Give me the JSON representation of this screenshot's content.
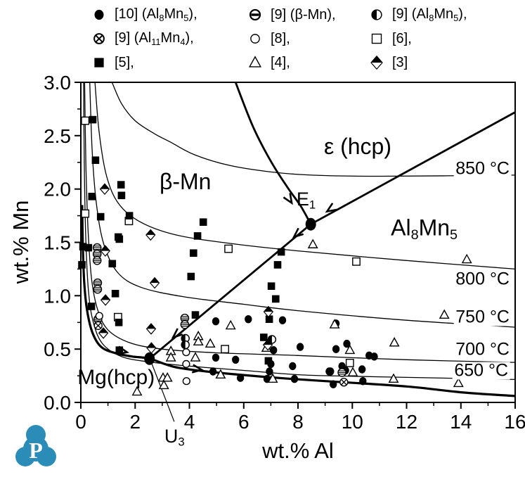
{
  "logo": {
    "letter": "P",
    "color": "#2b8cb7"
  },
  "legend": {
    "items": [
      {
        "name": "ref10-al8mn5",
        "marker": "filled-circle",
        "label_parts": [
          {
            "t": "[10] (Al"
          },
          {
            "t": "8",
            "sub": true
          },
          {
            "t": "Mn"
          },
          {
            "t": "5",
            "sub": true
          },
          {
            "t": "),"
          }
        ]
      },
      {
        "name": "ref9-beta-mn",
        "marker": "dash-circle",
        "label_parts": [
          {
            "t": "[9] (β-Mn),"
          }
        ]
      },
      {
        "name": "ref9-al8mn5",
        "marker": "half-circle",
        "label_parts": [
          {
            "t": "[9] (Al"
          },
          {
            "t": "8",
            "sub": true
          },
          {
            "t": "Mn"
          },
          {
            "t": "5",
            "sub": true
          },
          {
            "t": "),"
          }
        ]
      },
      {
        "name": "ref9-al11mn4",
        "marker": "crossed-circle",
        "label_parts": [
          {
            "t": "[9] (Al"
          },
          {
            "t": "11",
            "sub": true
          },
          {
            "t": "Mn"
          },
          {
            "t": "4",
            "sub": true
          },
          {
            "t": "),"
          }
        ]
      },
      {
        "name": "ref8",
        "marker": "open-circle",
        "label_parts": [
          {
            "t": "[8],"
          }
        ]
      },
      {
        "name": "ref6",
        "marker": "open-square",
        "label_parts": [
          {
            "t": "[6],"
          }
        ]
      },
      {
        "name": "ref5",
        "marker": "filled-square",
        "label_parts": [
          {
            "t": "[5],"
          }
        ]
      },
      {
        "name": "ref4",
        "marker": "open-triangle",
        "label_parts": [
          {
            "t": "[4],"
          }
        ]
      },
      {
        "name": "ref3",
        "marker": "half-diamond",
        "label_parts": [
          {
            "t": "[3]"
          }
        ]
      }
    ]
  },
  "chart_data": {
    "type": "scatter",
    "xlabel": "wt.% Al",
    "ylabel": "wt.% Mn",
    "xlim": [
      0,
      16
    ],
    "ylim": [
      0,
      3.0
    ],
    "x_ticks": [
      0,
      2,
      4,
      6,
      8,
      10,
      12,
      14,
      16
    ],
    "x_minor_ticks": [
      1,
      3,
      5,
      7,
      9,
      11,
      13,
      15
    ],
    "y_ticks": [
      "0.0",
      "0.5",
      "1.0",
      "1.5",
      "2.0",
      "2.5",
      "3.0"
    ],
    "y_minor_ticks": [
      0.25,
      0.75,
      1.25,
      1.75,
      2.25,
      2.75
    ],
    "series": [
      {
        "name": "[10] (Al8Mn5)",
        "marker": "filled-circle",
        "points": [
          [
            4.97,
            0.76
          ],
          [
            6.17,
            0.78
          ],
          [
            7.43,
            0.77
          ],
          [
            9.4,
            0.74
          ],
          [
            7.1,
            0.49
          ],
          [
            8.08,
            0.52
          ],
          [
            9.4,
            0.5
          ],
          [
            9.8,
            0.55
          ],
          [
            10.81,
            0.43
          ],
          [
            10.62,
            0.44
          ],
          [
            4.97,
            0.42
          ],
          [
            5.7,
            0.4
          ],
          [
            4.87,
            0.29
          ],
          [
            5.88,
            0.23
          ],
          [
            7.8,
            0.34
          ],
          [
            7.87,
            0.22
          ],
          [
            6.86,
            0.22
          ],
          [
            7.0,
            0.36
          ],
          [
            6.95,
            0.29
          ],
          [
            9.2,
            0.29
          ],
          [
            9.62,
            0.34
          ],
          [
            9.75,
            0.3
          ],
          [
            10.36,
            0.31
          ],
          [
            10.39,
            0.2
          ],
          [
            9.3,
            0.17
          ],
          [
            9.15,
            0.29
          ]
        ]
      },
      {
        "name": "[9] (beta-Mn)",
        "marker": "dash-circle",
        "points": [
          [
            0.6,
            1.45
          ],
          [
            0.6,
            1.39
          ],
          [
            0.6,
            1.33
          ],
          [
            0.62,
            1.12
          ],
          [
            0.62,
            1.06
          ],
          [
            0.63,
            0.78
          ],
          [
            3.83,
            0.79
          ],
          [
            3.83,
            0.73
          ],
          [
            9.62,
            0.28
          ]
        ]
      },
      {
        "name": "[9] (Al8Mn5)",
        "marker": "half-circle",
        "points": [
          [
            3.85,
            0.6
          ],
          [
            3.85,
            0.54
          ],
          [
            7.04,
            0.59
          ]
        ]
      },
      {
        "name": "[9] (Al11Mn4)",
        "marker": "crossed-circle",
        "points": [
          [
            0.64,
            0.72
          ],
          [
            9.69,
            0.19
          ]
        ]
      },
      {
        "name": "[8]",
        "marker": "open-circle",
        "points": [
          [
            0.68,
            0.81
          ],
          [
            3.88,
            0.47
          ],
          [
            3.88,
            0.36
          ],
          [
            3.89,
            0.2
          ]
        ]
      },
      {
        "name": "[6]",
        "marker": "open-square",
        "points": [
          [
            0.16,
            2.64
          ],
          [
            0.16,
            1.77
          ],
          [
            1.77,
            1.7
          ],
          [
            1.37,
            0.8
          ],
          [
            5.44,
            1.44
          ],
          [
            5.31,
            0.5
          ],
          [
            10.15,
            1.32
          ],
          [
            9.91,
            0.37
          ]
        ]
      },
      {
        "name": "[5]",
        "marker": "filled-square",
        "points": [
          [
            0.44,
            2.65
          ],
          [
            0.54,
            2.27
          ],
          [
            1.48,
            2.04
          ],
          [
            1.5,
            1.94
          ],
          [
            0.41,
            1.93
          ],
          [
            0.73,
            1.74
          ],
          [
            1.79,
            1.75
          ],
          [
            1.38,
            1.55
          ],
          [
            1.42,
            1.53
          ],
          [
            4.51,
            1.69
          ],
          [
            4.3,
            1.56
          ],
          [
            0.28,
            1.45
          ],
          [
            0.08,
            1.46
          ],
          [
            1.16,
            1.3
          ],
          [
            0.04,
            1.29
          ],
          [
            4.15,
            1.4
          ],
          [
            7.38,
            1.41
          ],
          [
            7.25,
            1.29
          ],
          [
            4.06,
            1.18
          ],
          [
            7.02,
            1.09
          ],
          [
            1.27,
            1.02
          ],
          [
            7.18,
            0.97
          ],
          [
            0.39,
            0.9
          ],
          [
            1.4,
            0.75
          ],
          [
            4.22,
            0.82
          ],
          [
            6.94,
            0.78
          ],
          [
            6.74,
            0.61
          ],
          [
            6.91,
            0.39
          ],
          [
            1.42,
            0.49
          ]
        ]
      },
      {
        "name": "[4]",
        "marker": "open-triangle",
        "points": [
          [
            8.55,
            1.48
          ],
          [
            14.22,
            1.34
          ],
          [
            13.39,
            0.82
          ],
          [
            9.35,
            0.73
          ],
          [
            11.55,
            0.56
          ],
          [
            9.91,
            0.49
          ],
          [
            10.02,
            0.28
          ],
          [
            11.52,
            0.22
          ],
          [
            13.91,
            0.18
          ],
          [
            7.07,
            0.22
          ],
          [
            6.84,
            0.51
          ],
          [
            5.52,
            0.72
          ],
          [
            4.33,
            0.62
          ],
          [
            4.33,
            0.57
          ],
          [
            4.77,
            0.55
          ],
          [
            4.22,
            0.42
          ],
          [
            3.32,
            0.48
          ],
          [
            3.32,
            0.42
          ],
          [
            3.03,
            0.23
          ],
          [
            3.19,
            0.23
          ],
          [
            3.06,
            0.16
          ],
          [
            2.07,
            0.1
          ],
          [
            5.15,
            0.26
          ]
        ]
      },
      {
        "name": "[3]",
        "marker": "half-diamond",
        "points": [
          [
            0.88,
            2.0
          ],
          [
            2.57,
            1.57
          ],
          [
            0.9,
            1.42
          ],
          [
            2.72,
            1.12
          ],
          [
            0.91,
            0.96
          ],
          [
            0.83,
            0.65
          ],
          [
            2.59,
            0.69
          ],
          [
            2.6,
            0.51
          ],
          [
            6.91,
            0.85
          ],
          [
            6.89,
            0.54
          ]
        ]
      }
    ],
    "isotherms": [
      {
        "name": "850c",
        "label": "850 °C",
        "label_pos": [
          14.8,
          2.19
        ],
        "points": [
          [
            1.15,
            3.0
          ],
          [
            1.5,
            2.8
          ],
          [
            2.0,
            2.64
          ],
          [
            2.7,
            2.52
          ],
          [
            3.3,
            2.44
          ],
          [
            4.2,
            2.32
          ],
          [
            5.5,
            2.22
          ],
          [
            7.0,
            2.16
          ],
          [
            8.5,
            2.13
          ],
          [
            11.0,
            2.12
          ],
          [
            16.0,
            2.13
          ]
        ]
      },
      {
        "name": "800c",
        "label": "800 °C",
        "label_pos": [
          14.8,
          1.155
        ],
        "points": [
          [
            0.52,
            3.0
          ],
          [
            0.68,
            2.52
          ],
          [
            0.95,
            2.12
          ],
          [
            1.4,
            1.86
          ],
          [
            2.2,
            1.69
          ],
          [
            3.5,
            1.57
          ],
          [
            5.5,
            1.49
          ],
          [
            8.0,
            1.42
          ],
          [
            12.0,
            1.33
          ],
          [
            16.0,
            1.25
          ]
        ]
      },
      {
        "name": "750c",
        "label": "750 °C",
        "label_pos": [
          14.8,
          0.8
        ],
        "points": [
          [
            0.33,
            3.0
          ],
          [
            0.42,
            2.35
          ],
          [
            0.58,
            1.85
          ],
          [
            0.85,
            1.48
          ],
          [
            1.35,
            1.22
          ],
          [
            2.2,
            1.08
          ],
          [
            3.8,
            0.99
          ],
          [
            6.0,
            0.92
          ],
          [
            8.0,
            0.86
          ],
          [
            12.0,
            0.77
          ],
          [
            16.0,
            0.705
          ]
        ]
      },
      {
        "name": "700c",
        "label": "700 °C",
        "label_pos": [
          14.8,
          0.495
        ],
        "points": [
          [
            0.14,
            3.0
          ],
          [
            0.19,
            2.2
          ],
          [
            0.27,
            1.6
          ],
          [
            0.4,
            1.15
          ],
          [
            0.62,
            0.87
          ],
          [
            1.0,
            0.68
          ],
          [
            1.8,
            0.56
          ],
          [
            3.0,
            0.5
          ],
          [
            5.0,
            0.465
          ],
          [
            8.0,
            0.44
          ],
          [
            12.0,
            0.4
          ],
          [
            16.0,
            0.375
          ]
        ]
      },
      {
        "name": "650c",
        "label": "650 °C",
        "label_pos": [
          14.75,
          0.297
        ],
        "points": [
          [
            0.1,
            3.0
          ],
          [
            0.13,
            2.2
          ],
          [
            0.18,
            1.55
          ],
          [
            0.28,
            1.05
          ],
          [
            0.45,
            0.76
          ],
          [
            0.8,
            0.55
          ],
          [
            1.5,
            0.43
          ],
          [
            2.5,
            0.38
          ],
          [
            4.0,
            0.34
          ],
          [
            6.0,
            0.3
          ],
          [
            8.0,
            0.26
          ],
          [
            10.0,
            0.245
          ],
          [
            12.0,
            0.235
          ],
          [
            14.0,
            0.225
          ],
          [
            16.0,
            0.215
          ]
        ]
      }
    ],
    "boundaries": [
      {
        "name": "epsilon-beta-boundary",
        "width": 2.8,
        "points": [
          [
            5.7,
            3.0
          ],
          [
            6.35,
            2.58
          ],
          [
            7.0,
            2.26
          ],
          [
            7.6,
            2.02
          ],
          [
            8.1,
            1.84
          ],
          [
            8.47,
            1.67
          ]
        ]
      },
      {
        "name": "e1-al8mn5-line",
        "width": 2.8,
        "points": [
          [
            8.47,
            1.67
          ],
          [
            16.0,
            2.72
          ]
        ]
      },
      {
        "name": "e1-u3-line",
        "width": 2.8,
        "points": [
          [
            8.47,
            1.67
          ],
          [
            2.53,
            0.41
          ]
        ]
      },
      {
        "name": "mg-hcp-solvus",
        "width": 3.2,
        "points": [
          [
            0.05,
            1.85
          ],
          [
            0.07,
            1.5
          ],
          [
            0.12,
            1.15
          ],
          [
            0.22,
            0.88
          ],
          [
            0.42,
            0.66
          ],
          [
            0.75,
            0.52
          ],
          [
            1.3,
            0.46
          ],
          [
            1.9,
            0.43
          ],
          [
            2.53,
            0.41
          ],
          [
            3.5,
            0.33
          ],
          [
            5.0,
            0.28
          ],
          [
            7.0,
            0.235
          ],
          [
            9.0,
            0.2
          ],
          [
            12.0,
            0.15
          ],
          [
            14.0,
            0.095
          ],
          [
            16.0,
            0.06
          ]
        ]
      }
    ],
    "arrows": [
      {
        "x": 7.77,
        "y": 1.87,
        "angle": 57
      },
      {
        "x": 9.07,
        "y": 1.79,
        "angle": 147
      },
      {
        "x": 7.85,
        "y": 1.55,
        "angle": 140
      },
      {
        "x": 3.4,
        "y": 0.61,
        "angle": 140
      },
      {
        "x": 1.7,
        "y": 0.47,
        "angle": 12
      },
      {
        "x": 4.45,
        "y": 0.305,
        "angle": 8
      }
    ],
    "invariant_points": [
      {
        "name": "e1",
        "x": 8.47,
        "y": 1.67,
        "label_parts": [
          {
            "t": "E"
          },
          {
            "t": "1",
            "sub": true
          }
        ],
        "label_x": 8.3,
        "label_y": 1.89
      },
      {
        "name": "u3",
        "x": 2.53,
        "y": 0.41,
        "label_parts": [
          {
            "t": "U"
          },
          {
            "t": "3",
            "sub": true
          }
        ],
        "label_x": 3.45,
        "label_y": -0.33,
        "leader": [
          [
            2.62,
            0.36
          ],
          [
            3.44,
            -0.18
          ]
        ]
      }
    ],
    "region_labels": [
      {
        "name": "beta-mn-region",
        "parts": [
          {
            "t": "β-Mn"
          }
        ],
        "x": 3.85,
        "y": 2.07,
        "size": 32
      },
      {
        "name": "epsilon-hcp-region",
        "parts": [
          {
            "t": "ε (hcp)"
          }
        ],
        "x": 10.2,
        "y": 2.4,
        "size": 32
      },
      {
        "name": "al8mn5-region",
        "parts": [
          {
            "t": "Al"
          },
          {
            "t": "8",
            "sub": true
          },
          {
            "t": "Mn"
          },
          {
            "t": "5",
            "sub": true
          }
        ],
        "x": 12.65,
        "y": 1.62,
        "size": 32
      },
      {
        "name": "mg-hcp-region",
        "parts": [
          {
            "t": "Mg(hcp)"
          }
        ],
        "x": 1.3,
        "y": 0.23,
        "size": 30
      }
    ]
  }
}
